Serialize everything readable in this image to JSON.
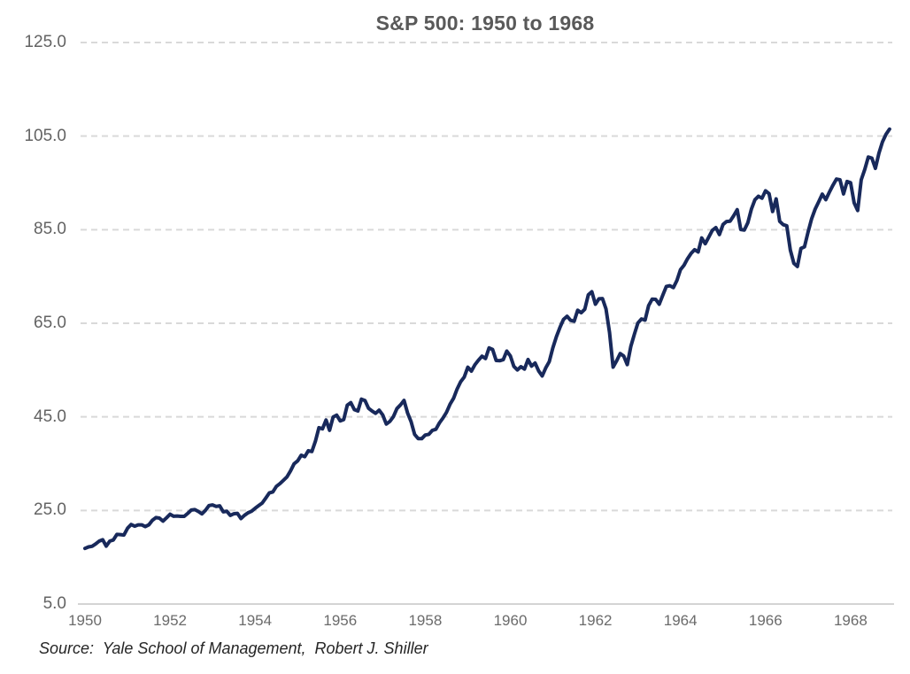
{
  "chart_data": {
    "type": "line",
    "title": "S&P 500: 1950 to 1968",
    "source": "Source:  Yale School of Management,  Robert J. Shiller",
    "xlabel": "",
    "ylabel": "",
    "ylim": [
      5.0,
      125.0
    ],
    "xlim": [
      1950,
      1968.92
    ],
    "grid": "horizontal-dashed",
    "legend_position": "none",
    "colors": {
      "line": "#18295B",
      "gridline": "#D9D9D9",
      "axis": "#D4D4D4",
      "title_text": "#595959",
      "tick_text": "#666666",
      "source_text": "#262626"
    },
    "y_ticks": [
      {
        "value": 125.0,
        "label": "125.0"
      },
      {
        "value": 105.0,
        "label": "105.0"
      },
      {
        "value": 85.0,
        "label": "85.0"
      },
      {
        "value": 65.0,
        "label": "65.0"
      },
      {
        "value": 45.0,
        "label": "45.0"
      },
      {
        "value": 25.0,
        "label": "25.0"
      },
      {
        "value": 5.0,
        "label": "5.0"
      }
    ],
    "x_ticks": [
      {
        "value": 1950,
        "label": "1950"
      },
      {
        "value": 1952,
        "label": "1952"
      },
      {
        "value": 1954,
        "label": "1954"
      },
      {
        "value": 1956,
        "label": "1956"
      },
      {
        "value": 1958,
        "label": "1958"
      },
      {
        "value": 1960,
        "label": "1960"
      },
      {
        "value": 1962,
        "label": "1962"
      },
      {
        "value": 1964,
        "label": "1964"
      },
      {
        "value": 1966,
        "label": "1966"
      },
      {
        "value": 1968,
        "label": "1968"
      }
    ],
    "series": [
      {
        "name": "S&P 500",
        "start_year": 1950,
        "frequency": "monthly",
        "values": [
          16.88,
          17.21,
          17.35,
          17.84,
          18.44,
          18.74,
          17.38,
          18.43,
          18.68,
          19.87,
          19.83,
          19.75,
          21.21,
          22.0,
          21.63,
          21.92,
          21.93,
          21.55,
          21.93,
          22.89,
          23.48,
          23.36,
          22.71,
          23.41,
          24.19,
          23.75,
          23.81,
          23.74,
          23.73,
          24.38,
          25.08,
          25.18,
          24.78,
          24.26,
          25.03,
          26.04,
          26.18,
          25.86,
          25.99,
          24.71,
          24.84,
          23.95,
          24.29,
          24.39,
          23.27,
          23.97,
          24.5,
          24.83,
          25.46,
          26.02,
          26.57,
          27.63,
          28.73,
          28.96,
          30.13,
          30.73,
          31.45,
          32.18,
          33.44,
          34.97,
          35.6,
          36.79,
          36.5,
          37.76,
          37.6,
          39.78,
          42.69,
          42.43,
          44.34,
          42.11,
          44.95,
          45.37,
          44.15,
          44.43,
          47.49,
          48.05,
          46.54,
          46.27,
          48.78,
          48.49,
          46.84,
          46.24,
          45.76,
          46.44,
          45.43,
          43.47,
          44.03,
          45.05,
          46.78,
          47.55,
          48.51,
          45.84,
          43.98,
          41.24,
          40.35,
          40.33,
          41.12,
          41.26,
          42.11,
          42.34,
          43.7,
          44.75,
          45.98,
          47.7,
          48.96,
          50.95,
          52.5,
          53.49,
          55.62,
          54.77,
          56.15,
          57.1,
          57.96,
          57.46,
          59.74,
          59.4,
          57.05,
          57.0,
          57.23,
          59.06,
          58.03,
          55.78,
          55.02,
          55.73,
          55.22,
          57.26,
          55.84,
          56.51,
          54.81,
          53.73,
          55.47,
          56.8,
          59.72,
          62.17,
          64.12,
          65.83,
          66.5,
          65.62,
          65.44,
          67.79,
          67.26,
          68.0,
          71.08,
          71.74,
          69.07,
          70.22,
          70.29,
          68.05,
          62.99,
          55.63,
          56.97,
          58.52,
          58.0,
          56.17,
          60.04,
          62.64,
          65.06,
          65.92,
          65.67,
          68.76,
          70.14,
          70.11,
          69.07,
          70.98,
          72.85,
          73.03,
          72.62,
          74.17,
          76.45,
          77.39,
          78.8,
          79.94,
          80.72,
          80.24,
          83.22,
          82.0,
          83.41,
          84.85,
          85.44,
          83.96,
          86.12,
          86.75,
          86.83,
          87.97,
          89.28,
          85.04,
          84.91,
          86.49,
          89.38,
          91.39,
          92.15,
          91.73,
          93.32,
          92.69,
          88.88,
          91.6,
          86.78,
          86.06,
          85.84,
          80.65,
          77.81,
          77.13,
          80.99,
          81.33,
          84.45,
          87.36,
          89.42,
          90.96,
          92.59,
          91.43,
          93.01,
          94.49,
          95.81,
          95.66,
          92.66,
          95.3,
          95.04,
          90.75,
          89.09,
          95.67,
          97.87,
          100.53,
          100.3,
          98.11,
          101.34,
          103.76,
          105.4,
          106.48
        ]
      }
    ]
  }
}
